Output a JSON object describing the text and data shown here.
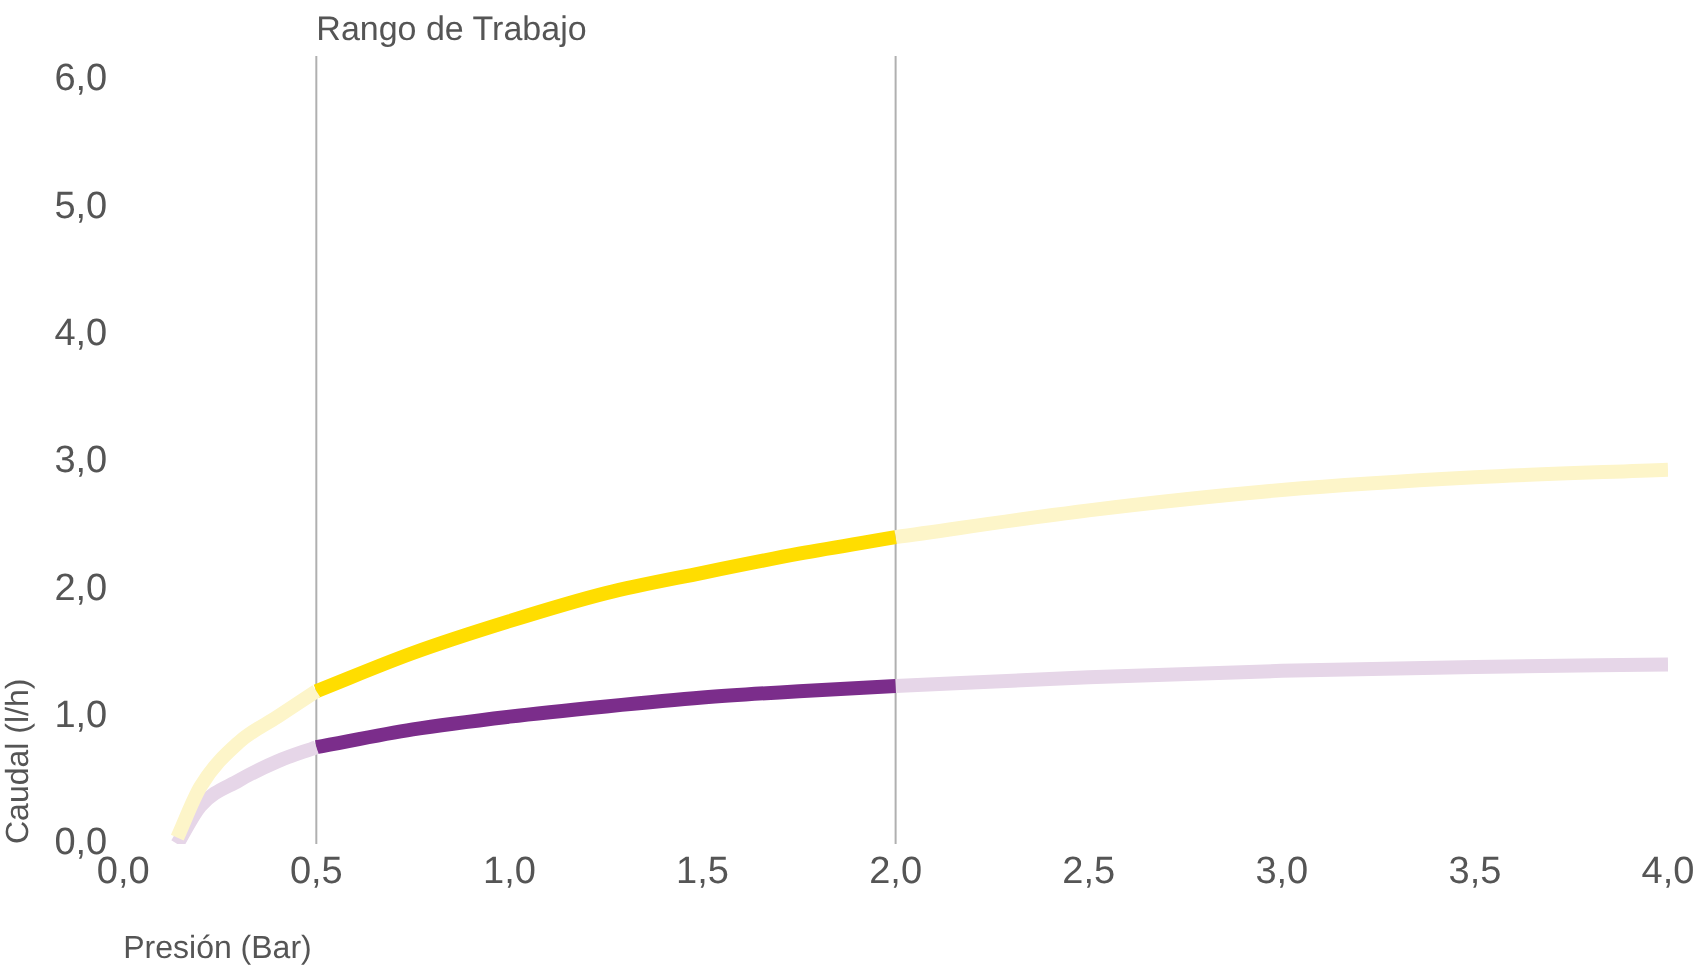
{
  "chart_data": {
    "type": "line",
    "xlabel": "Presión (Bar)",
    "ylabel": "Caudal (l/h)",
    "xlim": [
      0,
      4
    ],
    "ylim": [
      0,
      6
    ],
    "xticks": [
      {
        "value": 0,
        "label": "0,0"
      },
      {
        "value": 0.5,
        "label": "0,5"
      },
      {
        "value": 1,
        "label": "1,0"
      },
      {
        "value": 1.5,
        "label": "1,5"
      },
      {
        "value": 2,
        "label": "2,0"
      },
      {
        "value": 2.5,
        "label": "2,5"
      },
      {
        "value": 3,
        "label": "3,0"
      },
      {
        "value": 3.5,
        "label": "3,5"
      },
      {
        "value": 4,
        "label": "4,0"
      }
    ],
    "yticks": [
      {
        "value": 0,
        "label": "0,0"
      },
      {
        "value": 1,
        "label": "1,0"
      },
      {
        "value": 2,
        "label": "2,0"
      },
      {
        "value": 3,
        "label": "3,0"
      },
      {
        "value": 4,
        "label": "4,0"
      },
      {
        "value": 5,
        "label": "5,0"
      },
      {
        "value": 6,
        "label": "6,0"
      }
    ],
    "series": [
      {
        "color": "#fdf5c9",
        "x": [
          0.14,
          0.2,
          0.3,
          0.4,
          0.5
        ],
        "values": [
          0.05,
          0.45,
          0.8,
          1.0,
          1.2
        ]
      },
      {
        "color": "#ffdd00",
        "x": [
          0.5,
          0.75,
          1.0,
          1.25,
          1.5,
          1.75,
          2.0
        ],
        "values": [
          1.2,
          1.5,
          1.75,
          1.97,
          2.13,
          2.28,
          2.41
        ]
      },
      {
        "color": "#fdf5c9",
        "x": [
          2.0,
          2.5,
          3.0,
          3.5,
          4.0
        ],
        "values": [
          2.41,
          2.62,
          2.78,
          2.88,
          2.94
        ]
      },
      {
        "color": "#e6d6e8",
        "x": [
          0.14,
          0.2,
          0.3,
          0.4,
          0.5
        ],
        "values": [
          0.0,
          0.3,
          0.5,
          0.65,
          0.76
        ]
      },
      {
        "color": "#7b2d8b",
        "x": [
          0.5,
          0.75,
          1.0,
          1.25,
          1.5,
          1.75,
          2.0
        ],
        "values": [
          0.76,
          0.9,
          1.0,
          1.08,
          1.15,
          1.2,
          1.24
        ]
      },
      {
        "color": "#e6d6e8",
        "x": [
          2.0,
          2.5,
          3.0,
          3.5,
          4.0
        ],
        "values": [
          1.24,
          1.31,
          1.36,
          1.39,
          1.41
        ]
      }
    ],
    "ref_lines": [
      {
        "axis": "x",
        "value": 0.5,
        "label": "Rango de Trabajo",
        "color": "#b0b0b0"
      },
      {
        "axis": "x",
        "value": 2.0,
        "color": "#b0b0b0"
      }
    ],
    "grid": false,
    "legend": false,
    "marker": "none",
    "line_style": "solid"
  }
}
